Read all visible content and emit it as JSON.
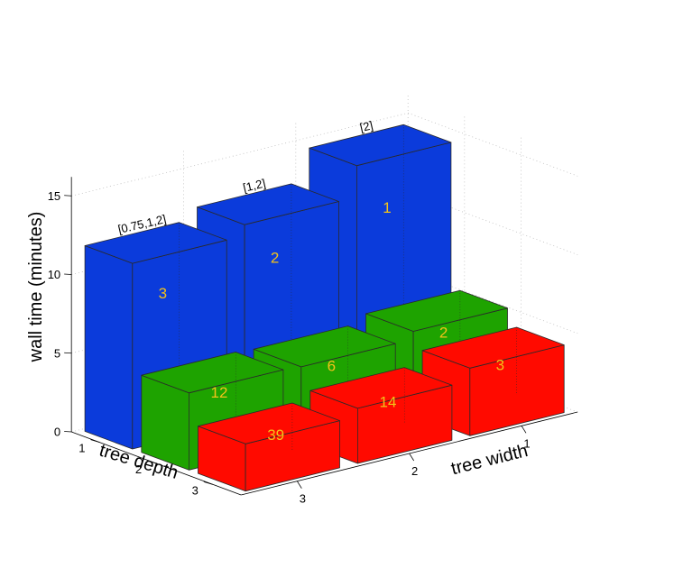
{
  "chart_data": {
    "type": "bar3d",
    "xlabel": "tree width",
    "ylabel": "tree depth",
    "zlabel": "wall time (minutes)",
    "x_ticks": [
      "3",
      "2",
      "1"
    ],
    "y_ticks": [
      "1",
      "2",
      "3"
    ],
    "z_ticks": [
      "0",
      "5",
      "10",
      "15"
    ],
    "zlim": [
      0,
      15
    ],
    "grid": true,
    "colors": {
      "1": "#0b3bdb",
      "2": "#1ea300",
      "3": "#ff0a00",
      "label": "#f2c21a"
    },
    "bars": [
      {
        "width": 3,
        "depth": 1,
        "value": 11.8,
        "label": "3"
      },
      {
        "width": 2,
        "depth": 1,
        "value": 12.5,
        "label": "2"
      },
      {
        "width": 1,
        "depth": 1,
        "value": 14.5,
        "label": "1"
      },
      {
        "width": 3,
        "depth": 2,
        "value": 4.9,
        "label": "12"
      },
      {
        "width": 2,
        "depth": 2,
        "value": 4.8,
        "label": "6"
      },
      {
        "width": 1,
        "depth": 2,
        "value": 5.3,
        "label": "2"
      },
      {
        "width": 3,
        "depth": 3,
        "value": 3.0,
        "label": "39"
      },
      {
        "width": 2,
        "depth": 3,
        "value": 3.5,
        "label": "14"
      },
      {
        "width": 1,
        "depth": 3,
        "value": 4.3,
        "label": "3"
      }
    ],
    "top_labels": [
      {
        "width": 3,
        "text": "[0.75,1,2]"
      },
      {
        "width": 2,
        "text": "[1,2]"
      },
      {
        "width": 1,
        "text": "[2]"
      }
    ]
  }
}
